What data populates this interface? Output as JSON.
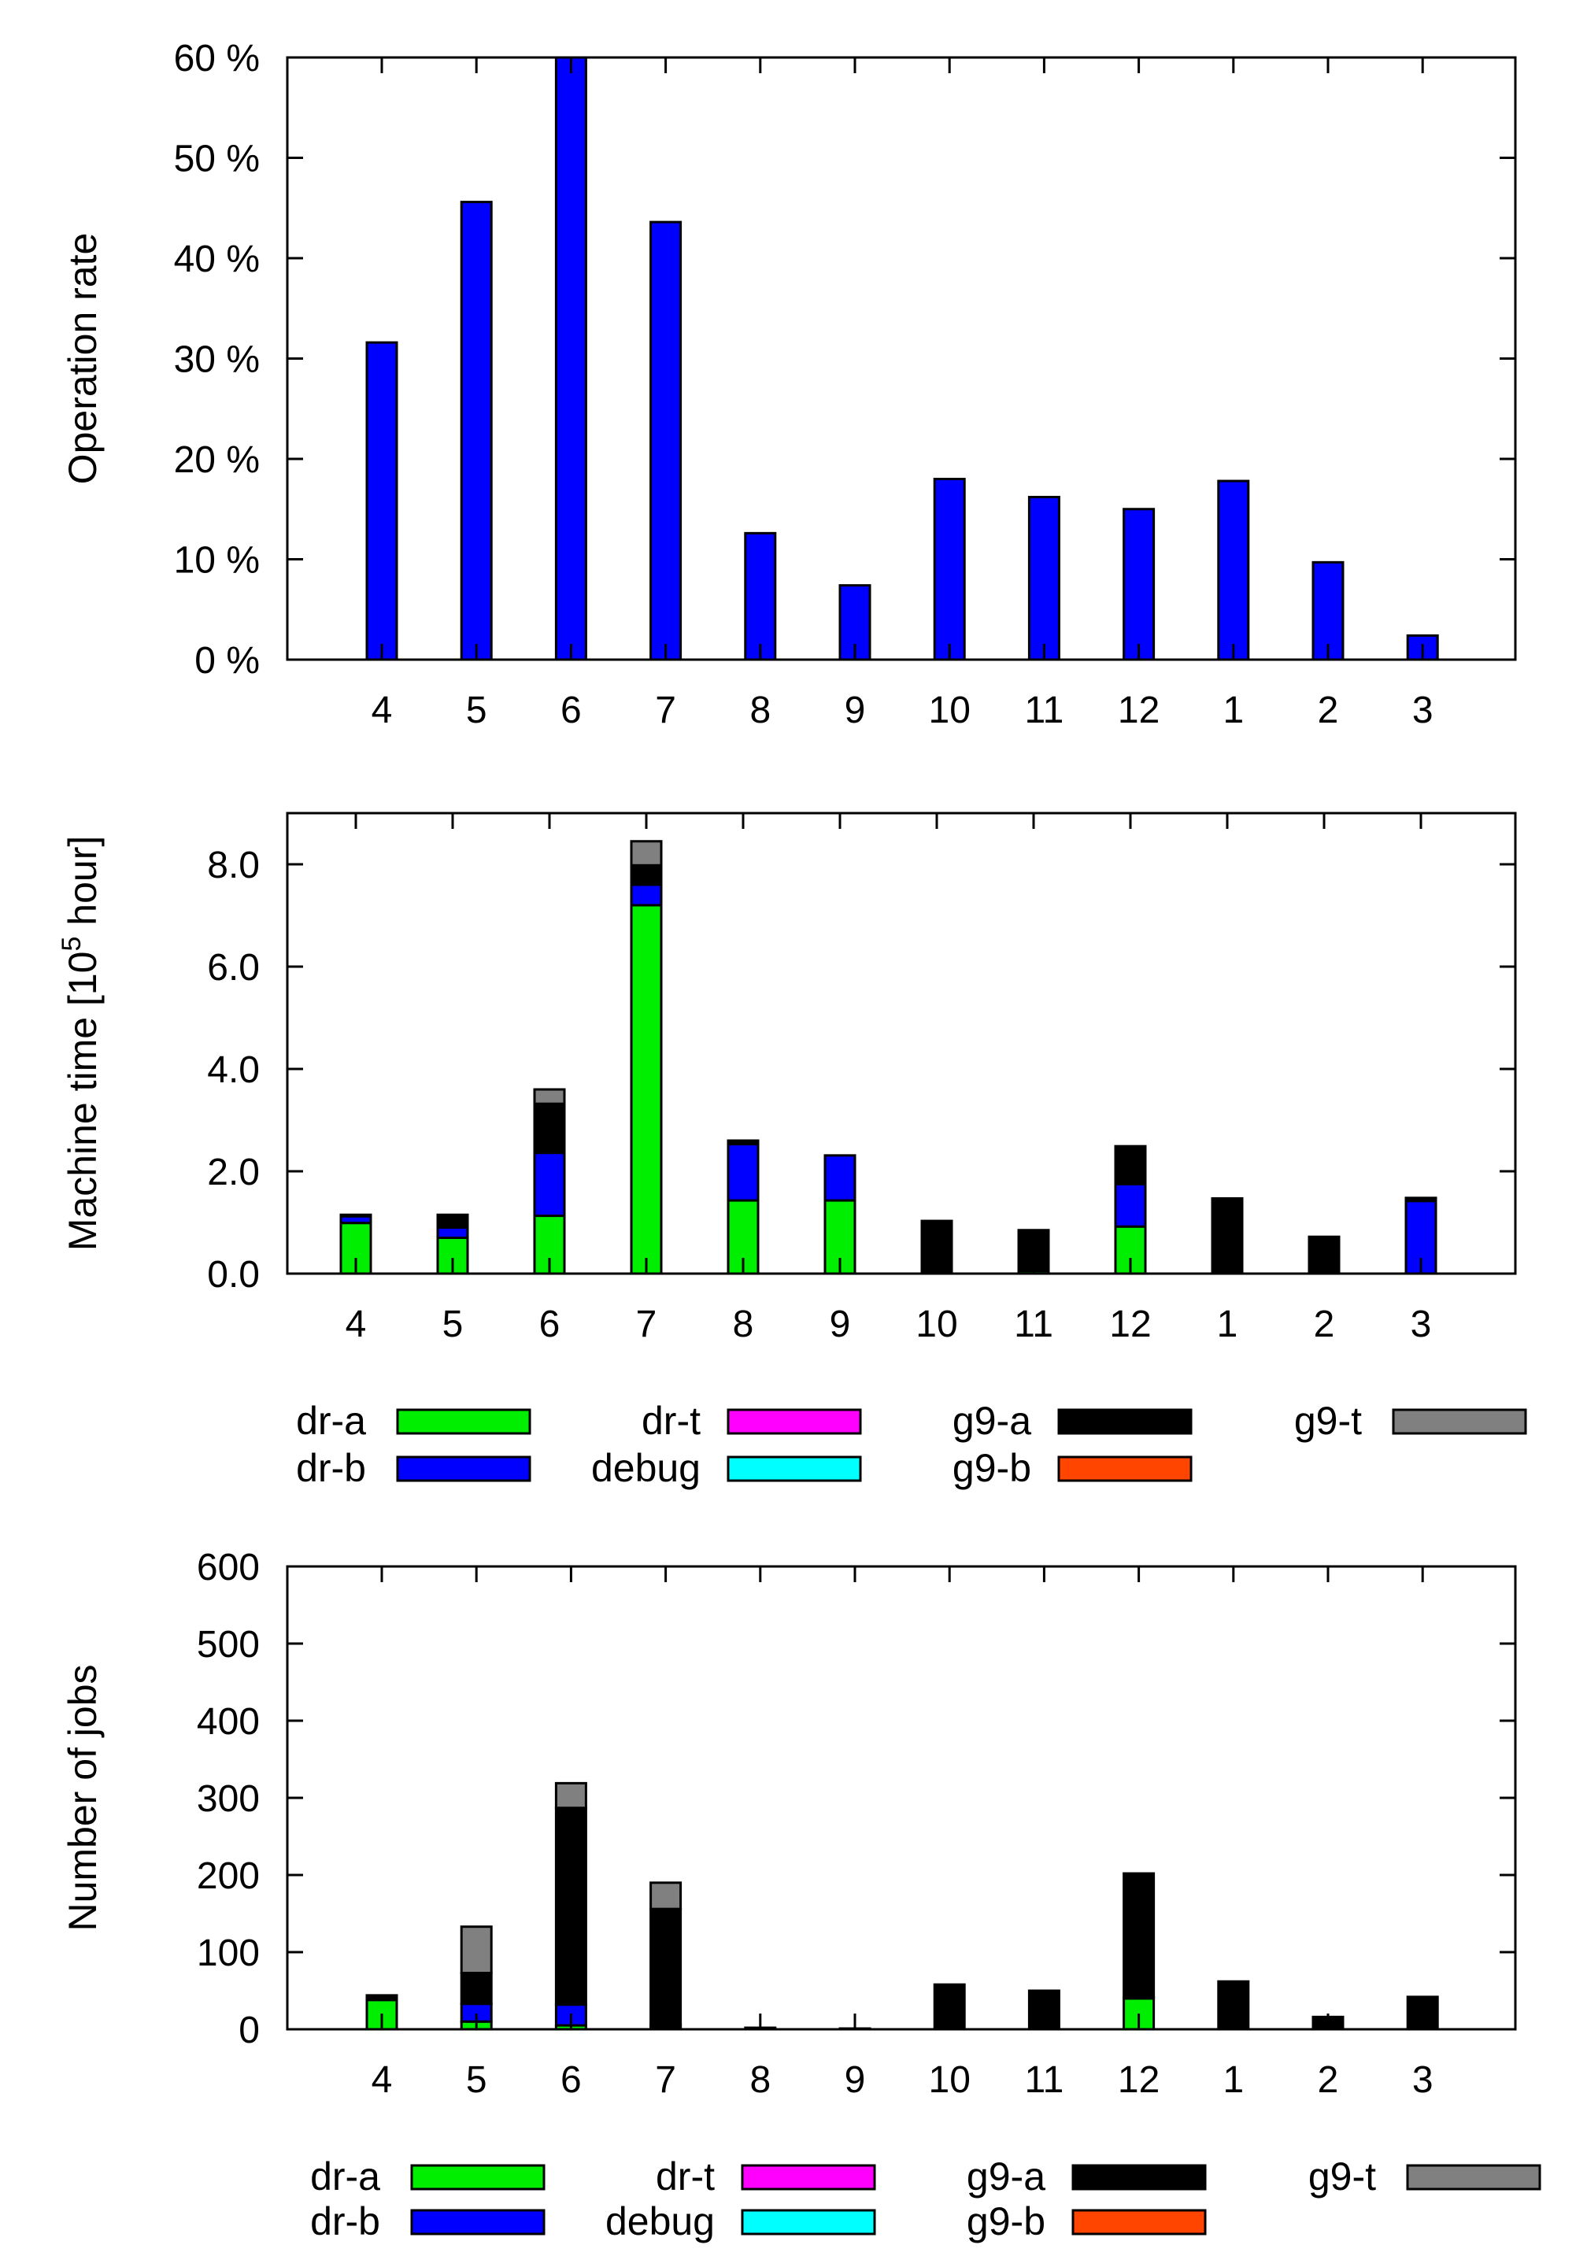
{
  "colors": {
    "dr-a": "#00ee00",
    "dr-b": "#0000ff",
    "dr-t": "#ff00ff",
    "debug": "#00ffff",
    "g9-a": "#000000",
    "g9-b": "#ff4500",
    "g9-t": "#808080"
  },
  "chart_data": [
    {
      "id": "operation-rate",
      "type": "bar",
      "title": "",
      "xlabel": "",
      "ylabel": "Operation rate",
      "categories": [
        "4",
        "5",
        "6",
        "7",
        "8",
        "9",
        "10",
        "11",
        "12",
        "1",
        "2",
        "3"
      ],
      "ylim": [
        0,
        60
      ],
      "yticks": [
        0,
        10,
        20,
        30,
        40,
        50,
        60
      ],
      "ytick_labels": [
        "0 %",
        "10 %",
        "20 %",
        "30 %",
        "40 %",
        "50 %",
        "60 %"
      ],
      "series": [
        {
          "key": "dr-b",
          "values": [
            31.6,
            45.6,
            60,
            43.6,
            12.6,
            7.4,
            18.0,
            16.2,
            15.0,
            17.8,
            9.7,
            2.4
          ]
        }
      ]
    },
    {
      "id": "machine-time",
      "type": "bar",
      "stacked": true,
      "title": "",
      "xlabel": "",
      "ylabel": "Machine time [10",
      "ylabel_sup": "5",
      "ylabel_end": " hour]",
      "categories": [
        "4",
        "5",
        "6",
        "7",
        "8",
        "9",
        "10",
        "11",
        "12",
        "1",
        "2",
        "3"
      ],
      "ylim": [
        0,
        9
      ],
      "yticks": [
        0,
        2,
        4,
        6,
        8
      ],
      "ytick_labels": [
        "0.0",
        "2.0",
        "4.0",
        "6.0",
        "8.0"
      ],
      "series": [
        {
          "name": "dr-a",
          "values": [
            0.99,
            0.7,
            1.13,
            7.2,
            1.43,
            1.43,
            0,
            0.05,
            0.92,
            0,
            0,
            0
          ]
        },
        {
          "name": "dr-b",
          "values": [
            0.13,
            0.2,
            1.23,
            0.4,
            1.1,
            0.88,
            0,
            0,
            0.83,
            0,
            0,
            1.42
          ]
        },
        {
          "name": "dr-t",
          "values": [
            0,
            0,
            0,
            0,
            0,
            0,
            0,
            0,
            0,
            0,
            0,
            0
          ]
        },
        {
          "name": "debug",
          "values": [
            0,
            0,
            0,
            0,
            0,
            0,
            0,
            0,
            0,
            0,
            0,
            0
          ]
        },
        {
          "name": "g9-a",
          "values": [
            0.03,
            0.25,
            0.96,
            0.38,
            0.07,
            0,
            1.03,
            0.8,
            0.74,
            1.47,
            0.72,
            0.06
          ]
        },
        {
          "name": "g9-b",
          "values": [
            0,
            0,
            0,
            0,
            0,
            0,
            0,
            0,
            0,
            0,
            0,
            0
          ]
        },
        {
          "name": "g9-t",
          "values": [
            0,
            0,
            0.28,
            0.47,
            0,
            0,
            0,
            0,
            0,
            0,
            0,
            0
          ]
        }
      ]
    },
    {
      "id": "number-of-jobs",
      "type": "bar",
      "stacked": true,
      "title": "",
      "xlabel": "",
      "ylabel": "Number of jobs",
      "categories": [
        "4",
        "5",
        "6",
        "7",
        "8",
        "9",
        "10",
        "11",
        "12",
        "1",
        "2",
        "3"
      ],
      "ylim": [
        0,
        600
      ],
      "yticks": [
        0,
        100,
        200,
        300,
        400,
        500,
        600
      ],
      "ytick_labels": [
        "0",
        "100",
        "200",
        "300",
        "400",
        "500",
        "600"
      ],
      "series": [
        {
          "name": "dr-a",
          "values": [
            38,
            10,
            5,
            3,
            0,
            0,
            0,
            0,
            40,
            0,
            0,
            0
          ]
        },
        {
          "name": "dr-b",
          "values": [
            2,
            23,
            27,
            3,
            0,
            0,
            0,
            0,
            2,
            0,
            0,
            0
          ]
        },
        {
          "name": "dr-t",
          "values": [
            0,
            0,
            0,
            0,
            0,
            0,
            0,
            0,
            0,
            0,
            0,
            0
          ]
        },
        {
          "name": "debug",
          "values": [
            0,
            0,
            0,
            0,
            0,
            0,
            0,
            0,
            0,
            0,
            0,
            0
          ]
        },
        {
          "name": "g9-a",
          "values": [
            4,
            40,
            255,
            150,
            2,
            1,
            58,
            50,
            160,
            62,
            16,
            42
          ]
        },
        {
          "name": "g9-b",
          "values": [
            0,
            0,
            0,
            0,
            0,
            0,
            0,
            0,
            0,
            0,
            0,
            0
          ]
        },
        {
          "name": "g9-t",
          "values": [
            0,
            60,
            32,
            34,
            0,
            0,
            0,
            0,
            0,
            0,
            0,
            0
          ]
        }
      ]
    }
  ],
  "legend": {
    "placement": "below-plot",
    "items": [
      "dr-a",
      "dr-b",
      "dr-t",
      "debug",
      "g9-a",
      "g9-b",
      "g9-t"
    ]
  }
}
